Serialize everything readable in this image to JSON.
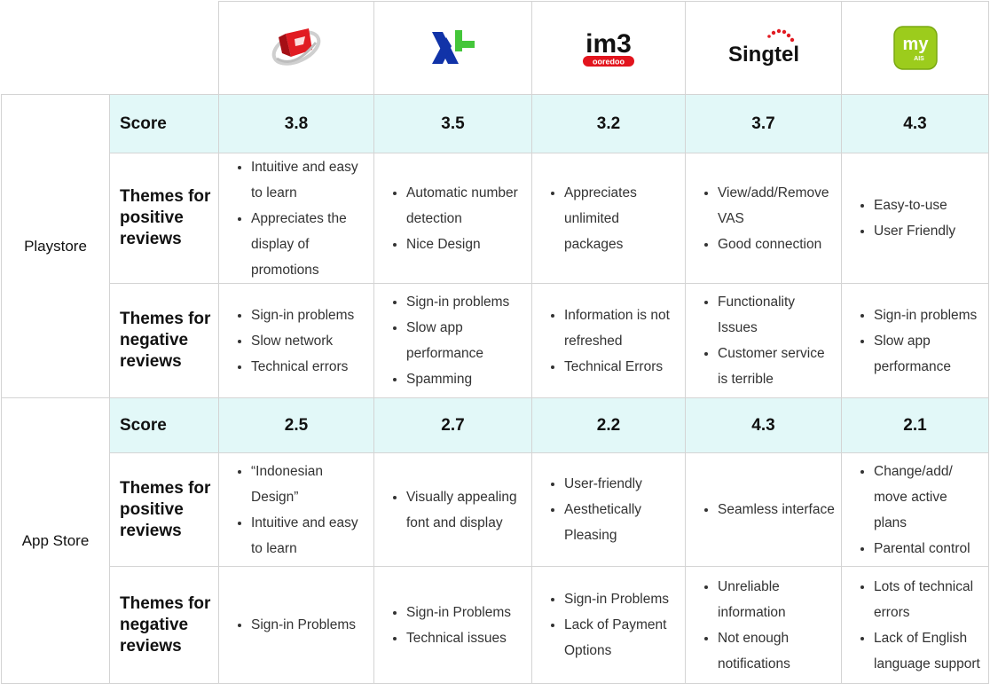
{
  "providers": [
    {
      "name": "Telkomsel",
      "logo_icon": "telkomsel-logo-icon"
    },
    {
      "name": "XL",
      "logo_icon": "xl-logo-icon"
    },
    {
      "name": "IM3 Ooredoo",
      "logo_icon": "im3-logo-icon",
      "logo_text": "im3",
      "logo_subtext": "ooredoo"
    },
    {
      "name": "Singtel",
      "logo_icon": "singtel-logo-icon",
      "logo_text": "Singtel"
    },
    {
      "name": "myAIS",
      "logo_icon": "myais-logo-icon",
      "logo_text": "my",
      "logo_subtext": "AIS"
    }
  ],
  "labels": {
    "score": "Score",
    "positive": "Themes for positive reviews",
    "negative": "Themes for negative reviews"
  },
  "groups": [
    {
      "name": "Playstore",
      "scores": [
        "3.8",
        "3.5",
        "3.2",
        "3.7",
        "4.3"
      ],
      "positive": [
        [
          "Intuitive and easy to learn",
          "Appreciates the display of promotions"
        ],
        [
          "Automatic number detection",
          "Nice Design"
        ],
        [
          "Appreciates unlimited packages"
        ],
        [
          "View/add/Remove VAS",
          "Good connection"
        ],
        [
          "Easy-to-use",
          "User Friendly"
        ]
      ],
      "negative": [
        [
          "Sign-in problems",
          "Slow network",
          "Technical errors"
        ],
        [
          "Sign-in problems",
          "Slow app performance",
          "Spamming"
        ],
        [
          "Information is not refreshed",
          "Technical Errors"
        ],
        [
          "Functionality Issues",
          "Customer service is terrible"
        ],
        [
          "Sign-in problems",
          "Slow app performance"
        ]
      ]
    },
    {
      "name": "App Store",
      "scores": [
        "2.5",
        "2.7",
        "2.2",
        "4.3",
        "2.1"
      ],
      "positive": [
        [
          "“Indonesian Design”",
          "Intuitive and easy to learn"
        ],
        [
          "Visually appealing font and display"
        ],
        [
          "User-friendly",
          "Aesthetically Pleasing"
        ],
        [
          "Seamless interface"
        ],
        [
          "Change/add/ move active plans",
          "Parental control"
        ]
      ],
      "negative": [
        [
          "Sign-in Problems"
        ],
        [
          "Sign-in Problems",
          "Technical issues"
        ],
        [
          "Sign-in Problems",
          "Lack of Payment Options"
        ],
        [
          "Unreliable information",
          "Not enough notifications"
        ],
        [
          "Lots of technical errors",
          "Lack of English language support"
        ]
      ]
    }
  ],
  "colors": {
    "score_row_bg": "#e2f8f8",
    "border": "#d4d4d4",
    "telkomsel_red": "#e11b22",
    "xl_blue": "#1133a8",
    "xl_green": "#44c63a",
    "im3_red": "#e2141d",
    "myais_green": "#9ccc1c"
  }
}
